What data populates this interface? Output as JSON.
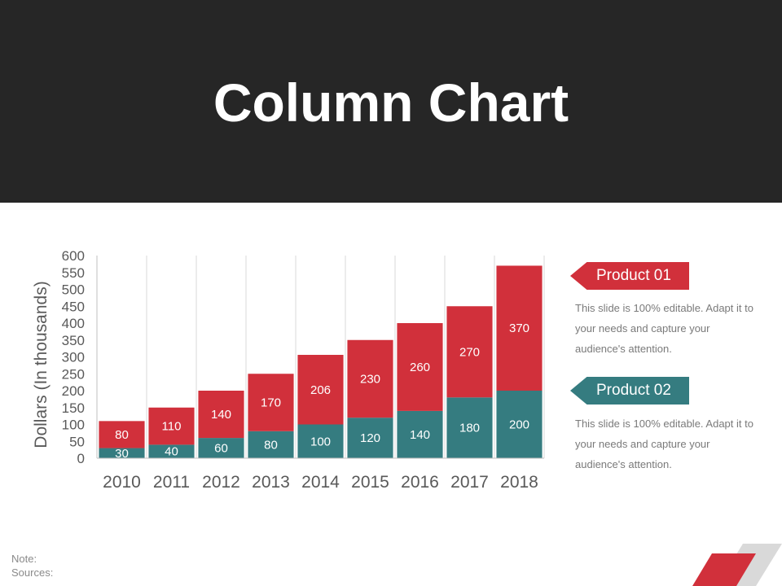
{
  "page": {
    "title": "Column Chart"
  },
  "chart_data": {
    "type": "bar",
    "stacked": true,
    "categories": [
      "2010",
      "2011",
      "2012",
      "2013",
      "2014",
      "2015",
      "2016",
      "2017",
      "2018"
    ],
    "series": [
      {
        "name": "Product 02",
        "values": [
          30,
          40,
          60,
          80,
          100,
          120,
          140,
          180,
          200
        ],
        "color": "#357c80"
      },
      {
        "name": "Product 01",
        "values": [
          80,
          110,
          140,
          170,
          206,
          230,
          260,
          270,
          370
        ],
        "color": "#d1303b"
      }
    ],
    "ylabel": "Dollars (In thousands)",
    "ylim": [
      0,
      600
    ],
    "yticks": [
      0,
      50,
      100,
      150,
      200,
      250,
      300,
      350,
      400,
      450,
      500,
      550,
      600
    ],
    "grid": "vertical"
  },
  "legend": {
    "items": [
      {
        "label": "Product 01",
        "text": "This slide is 100% editable. Adapt it to your needs and capture your audience's attention.",
        "color": "#d1303b"
      },
      {
        "label": "Product 02",
        "text": "This slide is 100% editable. Adapt it to your needs and capture your audience's attention.",
        "color": "#357c80"
      }
    ]
  },
  "footer": {
    "note": "Note:",
    "sources": "Sources:"
  },
  "colors": {
    "header_bg": "#262626",
    "accent_red": "#d1303b",
    "accent_teal": "#357c80"
  }
}
